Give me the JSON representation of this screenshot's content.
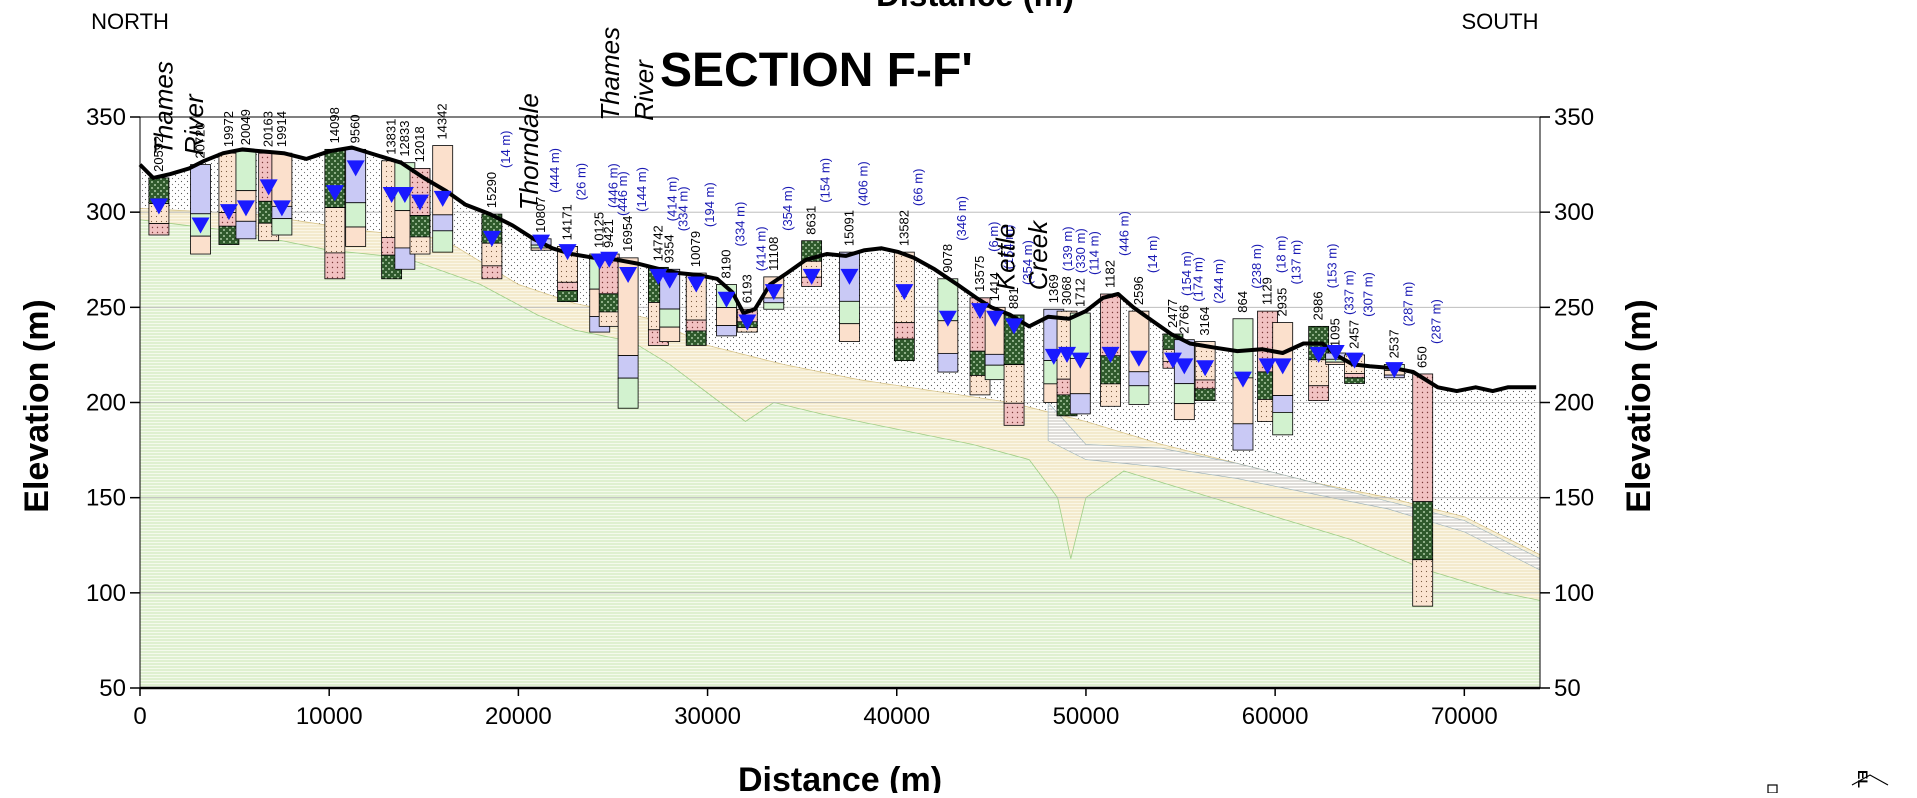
{
  "title": "SECTION F-F'",
  "top_label_cut": "Distance (m)",
  "direction_left": "NORTH",
  "direction_right": "SOUTH",
  "xlabel": "Distance (m)",
  "ylabel_left": "Elevation (m)",
  "ylabel_right": "Elevation (m)",
  "corner_label": "EL",
  "colors": {
    "ground_surface": "#000000",
    "water_level": "#1a1aff",
    "offset_text": "#1a1ab4",
    "grid": "#b4b4b4"
  },
  "chart_data": {
    "type": "cross-section",
    "xlim": [
      0,
      74000
    ],
    "ylim": [
      50,
      350
    ],
    "x_ticks": [
      0,
      10000,
      20000,
      30000,
      40000,
      50000,
      60000,
      70000
    ],
    "y_ticks": [
      50,
      100,
      150,
      200,
      250,
      300,
      350
    ],
    "grid": "horizontal",
    "ground_surface": [
      [
        0,
        325
      ],
      [
        700,
        318
      ],
      [
        1600,
        320
      ],
      [
        2600,
        323
      ],
      [
        3400,
        327
      ],
      [
        4400,
        331
      ],
      [
        5400,
        333
      ],
      [
        6400,
        332
      ],
      [
        7600,
        331
      ],
      [
        8800,
        328
      ],
      [
        10000,
        332
      ],
      [
        11200,
        334
      ],
      [
        12500,
        330
      ],
      [
        13800,
        326
      ],
      [
        15000,
        318
      ],
      [
        16200,
        311
      ],
      [
        17200,
        304
      ],
      [
        18500,
        299
      ],
      [
        19700,
        293
      ],
      [
        20800,
        286
      ],
      [
        21800,
        281
      ],
      [
        22800,
        278
      ],
      [
        24000,
        276
      ],
      [
        25200,
        275
      ],
      [
        26300,
        273
      ],
      [
        27500,
        270
      ],
      [
        28500,
        268
      ],
      [
        29500,
        267
      ],
      [
        30500,
        265
      ],
      [
        31300,
        258
      ],
      [
        31900,
        247
      ],
      [
        32500,
        249
      ],
      [
        33300,
        262
      ],
      [
        34200,
        268
      ],
      [
        35200,
        275
      ],
      [
        36300,
        278
      ],
      [
        37300,
        277
      ],
      [
        38300,
        280
      ],
      [
        39200,
        281
      ],
      [
        40100,
        279
      ],
      [
        40900,
        276
      ],
      [
        42000,
        270
      ],
      [
        43200,
        262
      ],
      [
        44200,
        255
      ],
      [
        45000,
        250
      ],
      [
        46000,
        246
      ],
      [
        47000,
        240
      ],
      [
        48000,
        245
      ],
      [
        49100,
        244
      ],
      [
        50000,
        248
      ],
      [
        50900,
        255
      ],
      [
        51700,
        257
      ],
      [
        52500,
        250
      ],
      [
        53500,
        243
      ],
      [
        54500,
        236
      ],
      [
        55500,
        231
      ],
      [
        56700,
        229
      ],
      [
        58000,
        227
      ],
      [
        59300,
        228
      ],
      [
        60400,
        226
      ],
      [
        61500,
        231
      ],
      [
        62500,
        231
      ],
      [
        63200,
        225
      ],
      [
        64100,
        220
      ],
      [
        65000,
        219
      ],
      [
        66300,
        218
      ],
      [
        67300,
        216
      ],
      [
        68600,
        208
      ],
      [
        69600,
        206
      ],
      [
        70600,
        208
      ],
      [
        71500,
        206
      ],
      [
        72300,
        208
      ],
      [
        73800,
        208
      ]
    ],
    "boreholes": [
      {
        "id": "20592",
        "x": 1000,
        "top": 318,
        "bottom": 288,
        "water": 303
      },
      {
        "id": "20720",
        "x": 3200,
        "top": 325,
        "bottom": 278,
        "water": 293
      },
      {
        "id": "19972",
        "x": 4700,
        "top": 331,
        "bottom": 283,
        "water": 300
      },
      {
        "id": "20049",
        "x": 5600,
        "top": 332,
        "bottom": 286,
        "water": 302
      },
      {
        "id": "20163",
        "x": 6800,
        "top": 331,
        "bottom": 285,
        "water": 313
      },
      {
        "id": "19914",
        "x": 7500,
        "top": 331,
        "bottom": 288,
        "water": 302
      },
      {
        "id": "14098",
        "x": 10300,
        "top": 333,
        "bottom": 265,
        "water": 310
      },
      {
        "id": "9560",
        "x": 11400,
        "top": 333,
        "bottom": 282,
        "water": 323
      },
      {
        "id": "13831",
        "x": 13300,
        "top": 327,
        "bottom": 265,
        "water": 309
      },
      {
        "id": "12833",
        "x": 14000,
        "top": 326,
        "bottom": 270,
        "water": 309
      },
      {
        "id": "12018",
        "x": 14800,
        "top": 323,
        "bottom": 278,
        "water": 305
      },
      {
        "id": "14342",
        "x": 16000,
        "top": 335,
        "bottom": 279,
        "water": 307
      },
      {
        "id": "15290",
        "x": 18600,
        "top": 299,
        "bottom": 265,
        "water": 286,
        "offset": "(14 m)"
      },
      {
        "id": "10807",
        "x": 21200,
        "top": 286,
        "bottom": 280,
        "water": 284,
        "offset": "(444 m)"
      },
      {
        "id": "14171",
        "x": 22600,
        "top": 282,
        "bottom": 253,
        "water": 279,
        "offset": "(26 m)"
      },
      {
        "id": "10125",
        "x": 24300,
        "top": 278,
        "bottom": 237,
        "water": 274,
        "offset": "(446 m)"
      },
      {
        "id": "9421",
        "x": 24800,
        "top": 278,
        "bottom": 240,
        "water": 275,
        "offset": "(446 m)"
      },
      {
        "id": "16954",
        "x": 25800,
        "top": 276,
        "bottom": 197,
        "water": 267,
        "offset": "(144 m)"
      },
      {
        "id": "14742",
        "x": 27400,
        "top": 271,
        "bottom": 230,
        "water": 266,
        "offset": "(414 m)"
      },
      {
        "id": "9354",
        "x": 28000,
        "top": 270,
        "bottom": 232,
        "water": 264,
        "offset": "(334 m)"
      },
      {
        "id": "10079",
        "x": 29400,
        "top": 268,
        "bottom": 230,
        "water": 262,
        "offset": "(194 m)"
      },
      {
        "id": "8190",
        "x": 31000,
        "top": 262,
        "bottom": 235,
        "water": 254,
        "offset": "(334 m)"
      },
      {
        "id": "6193",
        "x": 32100,
        "top": 249,
        "bottom": 237,
        "water": 242,
        "offset": "(414 m)"
      },
      {
        "id": "11108",
        "x": 33500,
        "top": 266,
        "bottom": 249,
        "water": 258,
        "offset": "(354 m)"
      },
      {
        "id": "8631",
        "x": 35500,
        "top": 285,
        "bottom": 261,
        "water": 266,
        "offset": "(154 m)"
      },
      {
        "id": "15091",
        "x": 37500,
        "top": 279,
        "bottom": 232,
        "water": 266,
        "offset": "(406 m)"
      },
      {
        "id": "13582",
        "x": 40400,
        "top": 279,
        "bottom": 222,
        "water": 258,
        "offset": "(66 m)"
      },
      {
        "id": "9078",
        "x": 42700,
        "top": 265,
        "bottom": 216,
        "water": 244,
        "offset": "(346 m)"
      },
      {
        "id": "13575",
        "x": 44400,
        "top": 255,
        "bottom": 204,
        "water": 248,
        "offset": "(6 m)"
      },
      {
        "id": "1414",
        "x": 45200,
        "top": 250,
        "bottom": 212,
        "water": 244,
        "offset": "(154 m)"
      },
      {
        "id": "881",
        "x": 46200,
        "top": 246,
        "bottom": 188,
        "water": 240,
        "offset": "(354 m)"
      },
      {
        "id": "1369",
        "x": 48300,
        "top": 249,
        "bottom": 200,
        "water": 224,
        "offset": "(139 m)"
      },
      {
        "id": "3068",
        "x": 49000,
        "top": 248,
        "bottom": 193,
        "water": 225,
        "offset": "(330 m)"
      },
      {
        "id": "1712",
        "x": 49700,
        "top": 247,
        "bottom": 194,
        "water": 222,
        "offset": "(114 m)"
      },
      {
        "id": "1182",
        "x": 51300,
        "top": 257,
        "bottom": 198,
        "water": 225,
        "offset": "(446 m)"
      },
      {
        "id": "2596",
        "x": 52800,
        "top": 248,
        "bottom": 199,
        "water": 223,
        "offset": "(14 m)"
      },
      {
        "id": "2477",
        "x": 54600,
        "top": 236,
        "bottom": 218,
        "water": 222,
        "offset": "(154 m)"
      },
      {
        "id": "2766",
        "x": 55200,
        "top": 233,
        "bottom": 191,
        "water": 219,
        "offset": "(174 m)"
      },
      {
        "id": "3164",
        "x": 56300,
        "top": 232,
        "bottom": 201,
        "water": 218,
        "offset": "(244 m)"
      },
      {
        "id": "864",
        "x": 58300,
        "top": 244,
        "bottom": 175,
        "water": 212,
        "offset": "(238 m)"
      },
      {
        "id": "1129",
        "x": 59600,
        "top": 248,
        "bottom": 190,
        "water": 219,
        "offset": "(18 m)"
      },
      {
        "id": "2935",
        "x": 60400,
        "top": 242,
        "bottom": 183,
        "water": 219,
        "offset": "(137 m)"
      },
      {
        "id": "2986",
        "x": 62300,
        "top": 240,
        "bottom": 201,
        "water": 225,
        "offset": "(153 m)"
      },
      {
        "id": "1095",
        "x": 63200,
        "top": 226,
        "bottom": 220,
        "water": 226,
        "offset": "(337 m)"
      },
      {
        "id": "2457",
        "x": 64200,
        "top": 225,
        "bottom": 210,
        "water": 222,
        "offset": "(307 m)"
      },
      {
        "id": "2537",
        "x": 66300,
        "top": 220,
        "bottom": 213,
        "water": 217,
        "offset": "(287 m)"
      },
      {
        "id": "650",
        "x": 67800,
        "top": 215,
        "bottom": 93,
        "offset": "(287 m)"
      }
    ],
    "annotations": [
      {
        "text": "Thames",
        "x": 1200,
        "y": 330
      },
      {
        "text": "River",
        "x": 2800,
        "y": 330
      },
      {
        "text": "Thorndale",
        "x": 20500,
        "y": 301
      },
      {
        "text": "Thames",
        "x": 24800,
        "y": 348
      },
      {
        "text": "River",
        "x": 26600,
        "y": 348
      },
      {
        "text": "Kettle",
        "x": 45700,
        "y": 259
      },
      {
        "text": "Creek",
        "x": 47400,
        "y": 259
      }
    ]
  }
}
